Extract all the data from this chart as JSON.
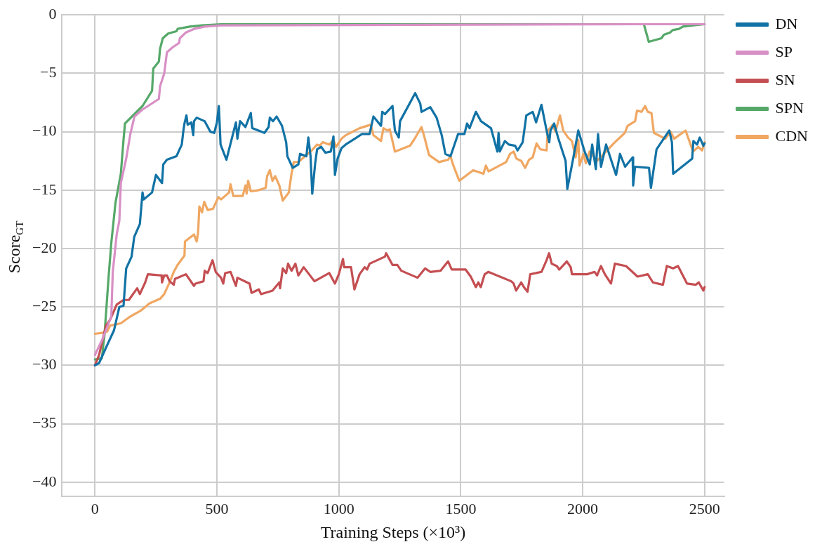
{
  "chart_data": {
    "type": "line",
    "xlabel": "Training Steps (×10³)",
    "ylabel": "Score$_{GT}$",
    "xlim": [
      -135,
      2580
    ],
    "ylim": [
      -41.2,
      0
    ],
    "xticks": [
      0,
      500,
      1000,
      1500,
      2000,
      2500
    ],
    "yticks": [
      {
        "value": -40,
        "label": "−40"
      },
      {
        "value": -35,
        "label": "−35"
      },
      {
        "value": -30,
        "label": "−30"
      },
      {
        "value": -25,
        "label": "−25"
      },
      {
        "value": -20,
        "label": "−20"
      },
      {
        "value": -15,
        "label": "−15"
      },
      {
        "value": -10,
        "label": "−10"
      },
      {
        "value": -5,
        "label": "−5"
      },
      {
        "value": 0,
        "label": "0"
      }
    ],
    "grid": true,
    "legend": "right",
    "marker": "none",
    "line_style": "solid",
    "series": [
      {
        "name": "DN",
        "color": "#1172a5",
        "x": [
          0,
          17,
          45,
          78,
          100,
          117,
          128,
          150,
          161,
          184,
          195,
          200,
          234,
          250,
          275,
          280,
          295,
          334,
          356,
          362,
          367,
          375,
          380,
          395,
          403,
          406,
          417,
          450,
          473,
          489,
          500,
          508,
          515,
          539,
          578,
          584,
          595,
          617,
          639,
          645,
          695,
          712,
          717,
          730,
          745,
          767,
          784,
          789,
          811,
          834,
          841,
          855,
          867,
          875,
          884,
          891,
          903,
          911,
          928,
          945,
          967,
          978,
          984,
          995,
          1011,
          1028,
          1095,
          1126,
          1142,
          1173,
          1178,
          1189,
          1220,
          1230,
          1246,
          1251,
          1282,
          1313,
          1334,
          1339,
          1375,
          1401,
          1422,
          1437,
          1458,
          1489,
          1515,
          1526,
          1536,
          1562,
          1583,
          1624,
          1650,
          1655,
          1660,
          1681,
          1697,
          1723,
          1733,
          1754,
          1769,
          1795,
          1809,
          1831,
          1852,
          1863,
          1868,
          1883,
          1899,
          1930,
          1937,
          1961,
          1982,
          2008,
          2029,
          2039,
          2054,
          2063,
          2075,
          2096,
          2137,
          2153,
          2174,
          2205,
          2207,
          2215,
          2272,
          2280,
          2303,
          2355,
          2366,
          2371,
          2449,
          2454,
          2469,
          2480,
          2495,
          2500
        ],
        "values": [
          -30,
          -29.8,
          -28.5,
          -27,
          -25,
          -24.9,
          -21.7,
          -20.7,
          -19,
          -17.9,
          -15.2,
          -15.8,
          -15.2,
          -13.7,
          -14.4,
          -12.8,
          -12.4,
          -12.1,
          -11.1,
          -10,
          -9.3,
          -8.6,
          -9.4,
          -9.2,
          -10.3,
          -9.1,
          -8.8,
          -9.1,
          -10,
          -10.1,
          -9.2,
          -7.8,
          -11.1,
          -12.4,
          -9.2,
          -10.6,
          -9.1,
          -9.6,
          -8.4,
          -9.7,
          -10.1,
          -9.6,
          -8.8,
          -9.1,
          -8.7,
          -9.5,
          -10.9,
          -12.1,
          -13.1,
          -12.8,
          -11.9,
          -12,
          -12.1,
          -10.5,
          -12.1,
          -15.3,
          -12.7,
          -11.5,
          -11.3,
          -11.8,
          -11.7,
          -10.4,
          -13.7,
          -12.3,
          -11.4,
          -11.1,
          -10.2,
          -10.2,
          -8.7,
          -9.5,
          -8.3,
          -8.5,
          -7.8,
          -9.9,
          -10.5,
          -9.1,
          -7.9,
          -6.7,
          -7.6,
          -8.3,
          -7.9,
          -8.8,
          -10.3,
          -11.9,
          -12.1,
          -10.2,
          -10.2,
          -9.3,
          -9.7,
          -8.3,
          -9.1,
          -9.7,
          -11.7,
          -10.1,
          -11.7,
          -10.8,
          -11.1,
          -11.2,
          -11.6,
          -10.9,
          -8.6,
          -8.3,
          -9.2,
          -7.7,
          -9.9,
          -10.9,
          -9.9,
          -9.3,
          -10.5,
          -12.5,
          -14.9,
          -12.3,
          -9.9,
          -11.7,
          -12.8,
          -11.1,
          -13.2,
          -10.2,
          -13,
          -11.1,
          -13.7,
          -11.9,
          -13,
          -12.2,
          -14.6,
          -13,
          -13.1,
          -14.8,
          -11.5,
          -9.9,
          -10.9,
          -13.6,
          -12.3,
          -10.8,
          -11.1,
          -10.5,
          -11.2,
          -11
        ]
      },
      {
        "name": "SP",
        "color": "#d88fc5",
        "x": [
          0,
          30,
          67,
          73,
          89,
          100,
          106,
          128,
          145,
          162,
          195,
          262,
          267,
          284,
          295,
          317,
          345,
          348,
          373,
          406,
          450,
          517,
          2250,
          2500
        ],
        "values": [
          -29.1,
          -27.8,
          -25.8,
          -22,
          -18.8,
          -17.6,
          -14.4,
          -12.3,
          -10.2,
          -8.7,
          -8.1,
          -7.2,
          -6.1,
          -5,
          -3.2,
          -2.8,
          -2.4,
          -2,
          -1.5,
          -1.2,
          -1,
          -0.9,
          -0.8,
          -0.8
        ]
      },
      {
        "name": "SN",
        "color": "#c44e52",
        "x": [
          0,
          17,
          45,
          62,
          89,
          117,
          139,
          173,
          184,
          206,
          217,
          273,
          275,
          284,
          295,
          306,
          323,
          328,
          373,
          406,
          412,
          445,
          450,
          462,
          482,
          495,
          517,
          526,
          534,
          556,
          567,
          578,
          584,
          634,
          642,
          672,
          681,
          728,
          756,
          759,
          770,
          784,
          792,
          806,
          822,
          834,
          856,
          900,
          961,
          984,
          1000,
          1017,
          1022,
          1050,
          1064,
          1085,
          1106,
          1116,
          1126,
          1189,
          1194,
          1220,
          1240,
          1256,
          1323,
          1354,
          1375,
          1417,
          1448,
          1463,
          1520,
          1541,
          1562,
          1572,
          1582,
          1598,
          1613,
          1707,
          1717,
          1727,
          1748,
          1759,
          1774,
          1785,
          1831,
          1852,
          1862,
          1873,
          1894,
          1904,
          1935,
          1951,
          1956,
          2018,
          2049,
          2059,
          2075,
          2091,
          2116,
          2132,
          2178,
          2225,
          2267,
          2288,
          2329,
          2345,
          2371,
          2391,
          2428,
          2464,
          2476,
          2495,
          2500
        ],
        "values": [
          -30,
          -29.1,
          -26.6,
          -26.1,
          -24.8,
          -24.4,
          -24.4,
          -23.4,
          -23.9,
          -22.9,
          -22.2,
          -22.3,
          -22.9,
          -22.3,
          -22.3,
          -22.8,
          -23.1,
          -22.6,
          -22.2,
          -23.2,
          -23,
          -22.8,
          -21.9,
          -22.1,
          -21,
          -22,
          -22.5,
          -23,
          -22.1,
          -22,
          -22.6,
          -23.2,
          -22.5,
          -23,
          -23.8,
          -23.5,
          -23.9,
          -23.6,
          -22.9,
          -23.4,
          -21.7,
          -22.1,
          -21.3,
          -21.9,
          -21.3,
          -22.3,
          -21.6,
          -22.8,
          -22.1,
          -23,
          -22.2,
          -20.9,
          -21.6,
          -21.6,
          -23.5,
          -22.2,
          -21.6,
          -21.8,
          -21.3,
          -20.7,
          -20.4,
          -21.4,
          -21.4,
          -21.9,
          -22.5,
          -21.7,
          -22,
          -21.9,
          -21.1,
          -21.8,
          -21.8,
          -22.4,
          -23.3,
          -22.9,
          -23.3,
          -22.2,
          -22,
          -22.8,
          -23,
          -23.6,
          -22.9,
          -23.3,
          -23.7,
          -22.2,
          -22,
          -21,
          -20.4,
          -21.3,
          -21.5,
          -21.8,
          -21.1,
          -21.6,
          -22.2,
          -22.2,
          -22,
          -22.3,
          -21.5,
          -22.2,
          -23,
          -21.3,
          -21.5,
          -22.4,
          -22.2,
          -22.9,
          -23.1,
          -21.5,
          -21.7,
          -21.5,
          -23,
          -23.1,
          -22.9,
          -23.6,
          -23.3
        ]
      },
      {
        "name": "SPN",
        "color": "#55a868",
        "x": [
          0,
          28,
          39,
          56,
          67,
          84,
          106,
          117,
          123,
          195,
          234,
          239,
          262,
          267,
          278,
          300,
          334,
          339,
          389,
          439,
          517,
          2251,
          2271,
          2323,
          2333,
          2359,
          2369,
          2395,
          2411,
          2452,
          2500
        ],
        "values": [
          -29.5,
          -29.4,
          -27.4,
          -22.4,
          -19.5,
          -16.1,
          -13.6,
          -10.7,
          -9.3,
          -7.8,
          -6.5,
          -4.6,
          -4,
          -2.9,
          -2,
          -1.6,
          -1.4,
          -1.2,
          -1,
          -0.9,
          -0.8,
          -0.8,
          -2.3,
          -2,
          -1.7,
          -1.5,
          -1.3,
          -1.2,
          -1,
          -0.9,
          -0.8
        ]
      },
      {
        "name": "CDN",
        "color": "#f0a762",
        "x": [
          0,
          34,
          50,
          62,
          106,
          139,
          189,
          223,
          267,
          284,
          306,
          323,
          339,
          367,
          369,
          406,
          417,
          423,
          428,
          439,
          448,
          462,
          484,
          506,
          517,
          550,
          556,
          567,
          606,
          617,
          622,
          628,
          639,
          672,
          700,
          706,
          717,
          728,
          739,
          756,
          770,
          795,
          806,
          815,
          834,
          889,
          911,
          922,
          934,
          961,
          978,
          989,
          1011,
          1028,
          1085,
          1131,
          1142,
          1173,
          1183,
          1199,
          1209,
          1230,
          1292,
          1308,
          1339,
          1349,
          1370,
          1411,
          1448,
          1458,
          1468,
          1494,
          1551,
          1593,
          1603,
          1614,
          1686,
          1702,
          1717,
          1728,
          1748,
          1764,
          1780,
          1795,
          1811,
          1826,
          1852,
          1857,
          1878,
          1888,
          1907,
          1920,
          1940,
          1956,
          1971,
          1982,
          1987,
          2003,
          2013,
          2028,
          2059,
          2132,
          2173,
          2184,
          2215,
          2223,
          2241,
          2256,
          2267,
          2282,
          2292,
          2339,
          2360,
          2375,
          2422,
          2453,
          2474,
          2490,
          2500
        ],
        "values": [
          -27.3,
          -27.2,
          -27.1,
          -26.6,
          -26.4,
          -25.9,
          -25.3,
          -24.7,
          -24.3,
          -23.9,
          -22.9,
          -22,
          -21.4,
          -20.6,
          -19.4,
          -18.8,
          -19.4,
          -18.6,
          -16.4,
          -16.9,
          -16,
          -16.7,
          -16.6,
          -15.6,
          -15.8,
          -15.2,
          -14.5,
          -15.5,
          -15.5,
          -14.6,
          -15.3,
          -14.2,
          -15.1,
          -15,
          -14.8,
          -13.8,
          -13.3,
          -14.2,
          -13.8,
          -14.6,
          -15.9,
          -15.2,
          -13.6,
          -12.6,
          -12.6,
          -11.6,
          -11.1,
          -11.2,
          -10.9,
          -11.1,
          -10.7,
          -11.3,
          -10.6,
          -10.3,
          -9.7,
          -9.4,
          -10.3,
          -10.8,
          -9.7,
          -9.9,
          -9.8,
          -11.7,
          -11.2,
          -10.7,
          -9.6,
          -10.3,
          -12,
          -12.6,
          -12.4,
          -12.1,
          -12.8,
          -14.2,
          -13.3,
          -13.6,
          -12.9,
          -13.4,
          -12.6,
          -11.9,
          -11.7,
          -12.3,
          -12.5,
          -13.1,
          -12.4,
          -12.2,
          -11,
          -11.5,
          -11.6,
          -9.9,
          -9.4,
          -10,
          -8.6,
          -9.9,
          -10.5,
          -10.8,
          -12.2,
          -10.7,
          -12.9,
          -11.9,
          -12.7,
          -11.7,
          -12.5,
          -10.9,
          -10.1,
          -9.5,
          -9.1,
          -8.2,
          -8.3,
          -7.8,
          -8.3,
          -8.4,
          -10.1,
          -10.6,
          -10,
          -10.6,
          -9.9,
          -11.7,
          -11.3,
          -11.6,
          -10.9
        ]
      }
    ]
  }
}
